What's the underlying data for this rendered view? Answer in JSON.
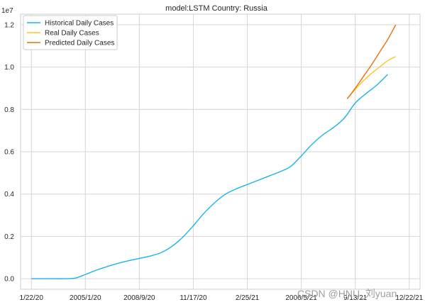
{
  "chart_data": {
    "type": "line",
    "title": "model:LSTM  Country: Russia",
    "xlabel": "",
    "ylabel": "",
    "y_scale_label": "1e7",
    "x_tick_labels": [
      "1/22/20",
      "2005/1/20",
      "2008/9/20",
      "11/17/20",
      "2/25/21",
      "2006/5/21",
      "9/13/21",
      "12/22/21"
    ],
    "y_tick_labels": [
      "0.0",
      "0.2",
      "0.4",
      "0.6",
      "0.8",
      "1.0",
      "1.2"
    ],
    "xlim": [
      -20,
      720
    ],
    "ylim": [
      -0.05,
      1.25
    ],
    "grid": true,
    "legend_position": "top-left",
    "series": [
      {
        "name": "Historical Daily Cases",
        "color": "#1cb4e8",
        "x": [
          0,
          30,
          60,
          80,
          90,
          100,
          110,
          120,
          140,
          160,
          180,
          200,
          220,
          240,
          260,
          280,
          300,
          320,
          340,
          360,
          380,
          400,
          420,
          440,
          460,
          480,
          500,
          520,
          540,
          560,
          580,
          600,
          620,
          640,
          660
        ],
        "y": [
          0.0,
          0.0,
          0.0,
          0.002,
          0.01,
          0.02,
          0.03,
          0.04,
          0.057,
          0.072,
          0.085,
          0.096,
          0.107,
          0.123,
          0.152,
          0.195,
          0.25,
          0.31,
          0.36,
          0.4,
          0.425,
          0.445,
          0.465,
          0.485,
          0.505,
          0.53,
          0.58,
          0.635,
          0.68,
          0.715,
          0.76,
          0.83,
          0.875,
          0.915,
          0.965
        ]
      },
      {
        "name": "Real Daily Cases",
        "color": "#ffc61e",
        "x": [
          585,
          600,
          615,
          630,
          645,
          660,
          675
        ],
        "y": [
          0.85,
          0.895,
          0.935,
          0.97,
          1.0,
          1.03,
          1.05
        ]
      },
      {
        "name": "Predicted Daily Cases",
        "color": "#e8710a",
        "x": [
          585,
          600,
          615,
          630,
          645,
          660,
          675
        ],
        "y": [
          0.85,
          0.9,
          0.955,
          1.01,
          1.07,
          1.13,
          1.2
        ]
      }
    ]
  },
  "watermark": "CSDN @HNU_刘yuan"
}
